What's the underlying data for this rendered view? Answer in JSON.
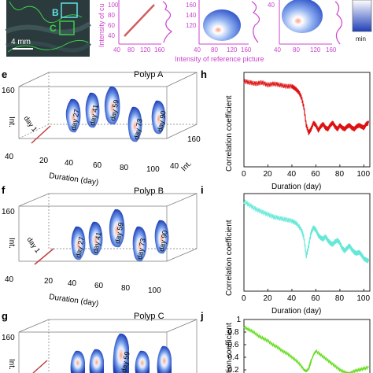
{
  "figure": {
    "colors": {
      "axis": "#222222",
      "magenta": "#cc44cc",
      "blob_dark": "#1f3fb8",
      "blob_mid": "#6f98e8",
      "blob_light": "#e8efff",
      "blob_hot": "#ff9a7a"
    }
  },
  "top": {
    "scale_label": "4 mm",
    "roi_b": "B",
    "roi_c": "C",
    "ylabel": "Intensity of cu",
    "xlabel": "Intensity of reference picture",
    "colorbar_label": "min",
    "ticks_x": [
      "40",
      "60",
      "80",
      "100",
      "120",
      "140",
      "160"
    ],
    "ticks_y_mid": [
      "100",
      "80",
      "60",
      "40"
    ],
    "ticks_y_top": [
      "160",
      "140",
      "120"
    ],
    "ticks_y_partial": [
      "40"
    ]
  },
  "panels3d": [
    {
      "letter": "e",
      "title": "Polyp A",
      "y_label": "Int.",
      "x_label": "Duration (day)",
      "z_label": "Int.",
      "y_ticks": [
        "160",
        "40"
      ],
      "x_ticks": [
        "20",
        "40",
        "60",
        "80",
        "100"
      ],
      "z_ticks": [
        "40",
        "160"
      ],
      "days": [
        "day 1",
        "day 27",
        "day 41",
        "day 59",
        "day 73",
        "day 90"
      ]
    },
    {
      "letter": "f",
      "title": "Polyp B",
      "y_label": "Int.",
      "x_label": "Duration (day)",
      "y_ticks": [
        "160",
        "40"
      ],
      "x_ticks": [
        "20",
        "40",
        "60",
        "80",
        "100"
      ],
      "days": [
        "day 1",
        "day 27",
        "day 41",
        "day 59",
        "day 73",
        "day 90"
      ]
    },
    {
      "letter": "g",
      "title": "Polyp C",
      "y_label": "Int.",
      "y_ticks": [
        "160"
      ],
      "days": [
        "day 59"
      ]
    }
  ],
  "chart_data": [
    {
      "type": "line",
      "panel": "h",
      "color": "#dd1111",
      "xlabel": "Duration (day)",
      "ylabel": "Correlation coefficient",
      "xlim": [
        0,
        105
      ],
      "ylim": [
        0.25,
        1.0
      ],
      "x_ticks": [
        "0",
        "20",
        "40",
        "60",
        "80",
        "100"
      ],
      "x": [
        0,
        5,
        10,
        15,
        20,
        25,
        30,
        35,
        40,
        43,
        46,
        48,
        50,
        52,
        54,
        56,
        58,
        60,
        62,
        64,
        66,
        68,
        70,
        72,
        74,
        76,
        78,
        80,
        82,
        84,
        86,
        88,
        90,
        92,
        94,
        96,
        98,
        100,
        102,
        104
      ],
      "y": [
        0.93,
        0.92,
        0.91,
        0.92,
        0.9,
        0.91,
        0.9,
        0.89,
        0.89,
        0.87,
        0.84,
        0.8,
        0.72,
        0.58,
        0.52,
        0.55,
        0.6,
        0.58,
        0.54,
        0.57,
        0.59,
        0.56,
        0.55,
        0.58,
        0.6,
        0.57,
        0.55,
        0.58,
        0.56,
        0.55,
        0.57,
        0.58,
        0.56,
        0.55,
        0.57,
        0.58,
        0.57,
        0.56,
        0.59,
        0.6
      ]
    },
    {
      "type": "line",
      "panel": "i",
      "color": "#66e8d8",
      "xlabel": "Duration (day)",
      "ylabel": "Correlation coefficient",
      "xlim": [
        0,
        105
      ],
      "ylim": [
        0.25,
        1.0
      ],
      "x_ticks": [
        "0",
        "20",
        "40",
        "60",
        "80",
        "100"
      ],
      "x": [
        0,
        5,
        10,
        15,
        20,
        25,
        30,
        35,
        40,
        44,
        48,
        50,
        52,
        54,
        56,
        58,
        60,
        62,
        64,
        66,
        68,
        70,
        72,
        74,
        76,
        78,
        80,
        82,
        84,
        86,
        88,
        90,
        92,
        94,
        96,
        98,
        100,
        102,
        104
      ],
      "y": [
        0.94,
        0.91,
        0.88,
        0.86,
        0.84,
        0.82,
        0.81,
        0.8,
        0.79,
        0.77,
        0.72,
        0.66,
        0.52,
        0.6,
        0.7,
        0.74,
        0.72,
        0.68,
        0.66,
        0.65,
        0.67,
        0.64,
        0.62,
        0.61,
        0.63,
        0.64,
        0.62,
        0.58,
        0.56,
        0.58,
        0.6,
        0.57,
        0.55,
        0.54,
        0.55,
        0.53,
        0.5,
        0.49,
        0.48
      ]
    },
    {
      "type": "line",
      "panel": "j",
      "color": "#66dd22",
      "ylabel": "tion coefficient",
      "xlim": [
        0,
        105
      ],
      "ylim": [
        0.0,
        1.0
      ],
      "y_ticks": [
        "1",
        "0.8",
        "0.6",
        "0.4",
        "0.2"
      ],
      "x": [
        0,
        4,
        8,
        12,
        16,
        20,
        24,
        28,
        32,
        36,
        40,
        44,
        48,
        50,
        52,
        54,
        56,
        58,
        60,
        64,
        68,
        72,
        76,
        80,
        84,
        88,
        92,
        96,
        100,
        104
      ],
      "y": [
        0.88,
        0.84,
        0.8,
        0.74,
        0.7,
        0.66,
        0.6,
        0.56,
        0.5,
        0.46,
        0.4,
        0.34,
        0.26,
        0.2,
        0.18,
        0.22,
        0.34,
        0.44,
        0.5,
        0.44,
        0.38,
        0.32,
        0.26,
        0.2,
        0.16,
        0.14,
        0.18,
        0.2,
        0.22,
        0.24
      ]
    }
  ]
}
